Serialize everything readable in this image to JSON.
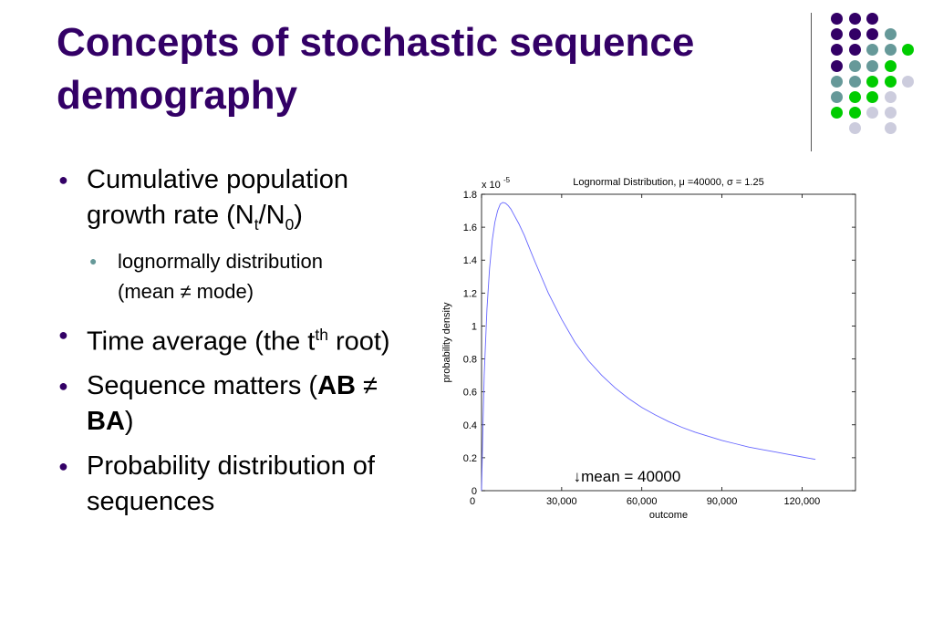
{
  "slide": {
    "title_line1": "Concepts of stochastic sequence",
    "title_line2": "demography"
  },
  "bullets": {
    "b1_text": "Cumulative population growth rate (N",
    "b1_sub1": "t",
    "b1_slash": "/N",
    "b1_sub2": "0",
    "b1_close": ")",
    "b1_1_line1": "lognormally distribution",
    "b1_1_line2": "(mean ≠ mode)",
    "b2_text": "Time average (the t",
    "b2_sup": "th",
    "b2_text2": " root)",
    "b3_pre": "Sequence matters (",
    "b3_ab": "AB",
    "b3_neq": " ≠ ",
    "b3_ba": "BA",
    "b3_close": ")",
    "b4_text": "Probability distribution of sequences"
  },
  "decor_dot_colors": {
    "purple": "#330066",
    "teal": "#669999",
    "green": "#00cc00",
    "lavender": "#ccccdd"
  },
  "chart_data": {
    "type": "line",
    "title": "Lognormal Distribution, μ =40000, σ = 1.25",
    "xlabel": "outcome",
    "ylabel": "probability density",
    "y_multiplier_label": "x 10",
    "y_multiplier_exp": "-5",
    "xlim": [
      0,
      140000
    ],
    "ylim": [
      0,
      1.8
    ],
    "x_ticks": [
      0,
      30000,
      60000,
      90000,
      120000
    ],
    "x_tick_labels": [
      "0",
      "30,000",
      "60,000",
      "90,000",
      "120,000"
    ],
    "y_ticks": [
      0,
      0.2,
      0.4,
      0.6,
      0.8,
      1,
      1.2,
      1.4,
      1.6,
      1.8
    ],
    "y_tick_labels": [
      "0",
      "0.2",
      "0.4",
      "0.6",
      "0.8",
      "1",
      "1.2",
      "1.4",
      "1.6",
      "1.8"
    ],
    "series": [
      {
        "color": "#6666ff",
        "x": [
          0,
          500,
          1000,
          2000,
          3000,
          4000,
          5000,
          6000,
          7000,
          8000,
          9000,
          10000,
          11000,
          12000,
          14000,
          16000,
          18000,
          20000,
          25000,
          30000,
          35000,
          40000,
          45000,
          50000,
          55000,
          60000,
          65000,
          70000,
          75000,
          80000,
          85000,
          90000,
          95000,
          100000,
          105000,
          110000,
          115000,
          120000,
          125000
        ],
        "y": [
          0,
          0.38,
          0.7,
          1.1,
          1.35,
          1.52,
          1.63,
          1.7,
          1.74,
          1.75,
          1.745,
          1.73,
          1.71,
          1.68,
          1.62,
          1.55,
          1.47,
          1.39,
          1.2,
          1.04,
          0.9,
          0.79,
          0.7,
          0.625,
          0.56,
          0.505,
          0.46,
          0.42,
          0.385,
          0.355,
          0.33,
          0.305,
          0.285,
          0.265,
          0.25,
          0.235,
          0.22,
          0.205,
          0.19
        ]
      }
    ],
    "annotation": "mean = 40000",
    "annotation_arrow": "↓",
    "annotation_x": 40000
  }
}
